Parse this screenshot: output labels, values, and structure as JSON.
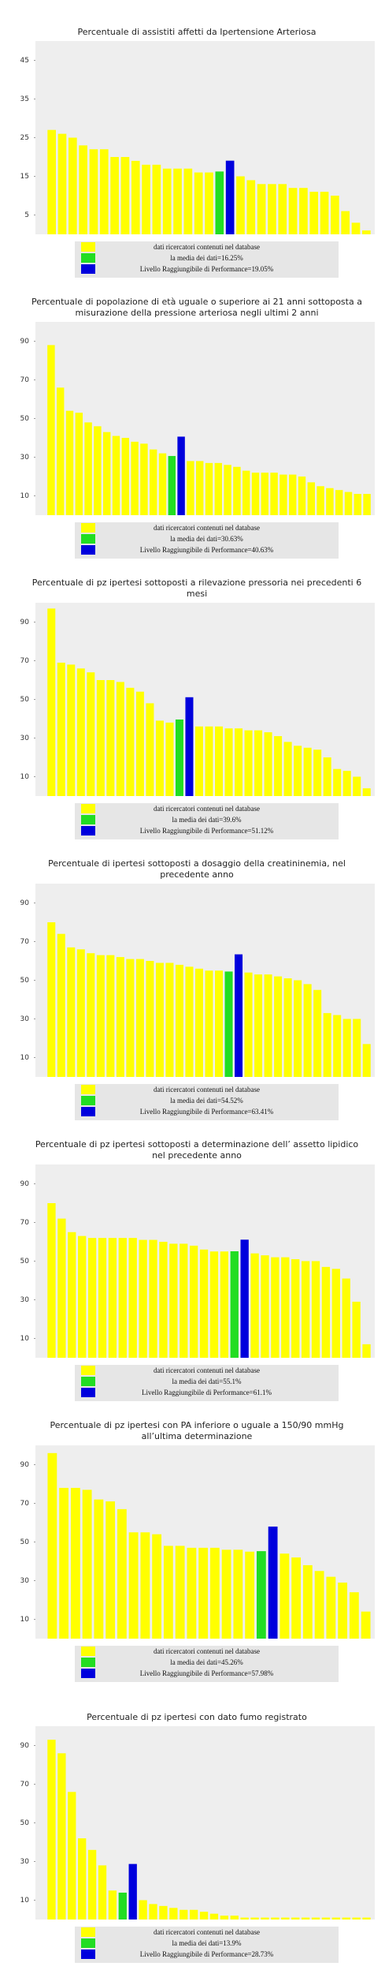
{
  "chart_data": [
    {
      "type": "bar",
      "title": "Percentuale di assistiti  affetti da Ipertensione Arteriosa",
      "values": [
        27,
        26,
        25,
        23,
        22,
        22,
        20,
        20,
        19,
        18,
        18,
        17,
        17,
        17,
        16,
        16,
        16.25,
        19.05,
        15,
        14,
        13,
        13,
        13,
        12,
        12,
        11,
        11,
        10,
        6,
        3,
        1
      ],
      "colors": [
        "#ffff00",
        "#ffff00",
        "#ffff00",
        "#ffff00",
        "#ffff00",
        "#ffff00",
        "#ffff00",
        "#ffff00",
        "#ffff00",
        "#ffff00",
        "#ffff00",
        "#ffff00",
        "#ffff00",
        "#ffff00",
        "#ffff00",
        "#ffff00",
        "#22dd22",
        "#0000dd",
        "#ffff00",
        "#ffff00",
        "#ffff00",
        "#ffff00",
        "#ffff00",
        "#ffff00",
        "#ffff00",
        "#ffff00",
        "#ffff00",
        "#ffff00",
        "#ffff00",
        "#ffff00",
        "#ffff00"
      ],
      "ylim": [
        0,
        50
      ],
      "yticks": [
        5,
        15,
        25,
        35,
        45
      ],
      "background": "#eeeeee",
      "legend": [
        {
          "name": "dati ricercatori contenuti nel database",
          "color": "#ffff00"
        },
        {
          "name": "la media dei dati=16.25%",
          "color": "#22dd22"
        },
        {
          "name": "Livello Raggiungibile di Performance=19.05%",
          "color": "#0000dd"
        }
      ]
    },
    {
      "type": "bar",
      "title": "Percentuale di popolazione di età uguale o superiore ai 21 anni sottoposta a misurazione della pressione arteriosa negli ultimi 2 anni",
      "values": [
        88,
        66,
        54,
        53,
        48,
        46,
        43,
        41,
        40,
        38,
        37,
        34,
        32,
        30.63,
        40.63,
        28,
        28,
        27,
        27,
        26,
        25,
        23,
        22,
        22,
        22,
        21,
        21,
        20,
        17,
        15,
        14,
        13,
        12,
        11,
        11
      ],
      "colors": [
        "#ffff00",
        "#ffff00",
        "#ffff00",
        "#ffff00",
        "#ffff00",
        "#ffff00",
        "#ffff00",
        "#ffff00",
        "#ffff00",
        "#ffff00",
        "#ffff00",
        "#ffff00",
        "#ffff00",
        "#22dd22",
        "#0000dd",
        "#ffff00",
        "#ffff00",
        "#ffff00",
        "#ffff00",
        "#ffff00",
        "#ffff00",
        "#ffff00",
        "#ffff00",
        "#ffff00",
        "#ffff00",
        "#ffff00",
        "#ffff00",
        "#ffff00",
        "#ffff00",
        "#ffff00",
        "#ffff00",
        "#ffff00",
        "#ffff00",
        "#ffff00",
        "#ffff00"
      ],
      "ylim": [
        0,
        100
      ],
      "yticks": [
        10,
        30,
        50,
        70,
        90
      ],
      "background": "#eeeeee",
      "legend": [
        {
          "name": "dati ricercatori contenuti nel database",
          "color": "#ffff00"
        },
        {
          "name": "la media dei dati=30.63%",
          "color": "#22dd22"
        },
        {
          "name": "Livello Raggiungibile di Performance=40.63%",
          "color": "#0000dd"
        }
      ]
    },
    {
      "type": "bar",
      "title": "Percentuale di pz ipertesi sottoposti a rilevazione pressoria nei precedenti 6 mesi",
      "values": [
        97,
        69,
        68,
        66,
        64,
        60,
        60,
        59,
        56,
        54,
        48,
        39,
        38,
        39.6,
        51.12,
        36,
        36,
        36,
        35,
        35,
        34,
        34,
        33,
        31,
        28,
        26,
        25,
        24,
        20,
        14,
        13,
        10,
        4
      ],
      "colors": [
        "#ffff00",
        "#ffff00",
        "#ffff00",
        "#ffff00",
        "#ffff00",
        "#ffff00",
        "#ffff00",
        "#ffff00",
        "#ffff00",
        "#ffff00",
        "#ffff00",
        "#ffff00",
        "#ffff00",
        "#22dd22",
        "#0000dd",
        "#ffff00",
        "#ffff00",
        "#ffff00",
        "#ffff00",
        "#ffff00",
        "#ffff00",
        "#ffff00",
        "#ffff00",
        "#ffff00",
        "#ffff00",
        "#ffff00",
        "#ffff00",
        "#ffff00",
        "#ffff00",
        "#ffff00",
        "#ffff00",
        "#ffff00",
        "#ffff00"
      ],
      "ylim": [
        0,
        100
      ],
      "yticks": [
        10,
        30,
        50,
        70,
        90
      ],
      "background": "#eeeeee",
      "legend": [
        {
          "name": "dati ricercatori contenuti nel database",
          "color": "#ffff00"
        },
        {
          "name": "la media dei dati=39.6%",
          "color": "#22dd22"
        },
        {
          "name": "Livello Raggiungibile di Performance=51.12%",
          "color": "#0000dd"
        }
      ]
    },
    {
      "type": "bar",
      "title": "Percentuale di ipertesi sottoposti a dosaggio della creatininemia, nel precedente anno",
      "values": [
        80,
        74,
        67,
        66,
        64,
        63,
        63,
        62,
        61,
        61,
        60,
        59,
        59,
        58,
        57,
        56,
        55,
        55,
        54.52,
        63.41,
        54,
        53,
        53,
        52,
        51,
        50,
        48,
        45,
        33,
        32,
        30,
        30,
        17
      ],
      "colors": [
        "#ffff00",
        "#ffff00",
        "#ffff00",
        "#ffff00",
        "#ffff00",
        "#ffff00",
        "#ffff00",
        "#ffff00",
        "#ffff00",
        "#ffff00",
        "#ffff00",
        "#ffff00",
        "#ffff00",
        "#ffff00",
        "#ffff00",
        "#ffff00",
        "#ffff00",
        "#ffff00",
        "#22dd22",
        "#0000dd",
        "#ffff00",
        "#ffff00",
        "#ffff00",
        "#ffff00",
        "#ffff00",
        "#ffff00",
        "#ffff00",
        "#ffff00",
        "#ffff00",
        "#ffff00",
        "#ffff00",
        "#ffff00",
        "#ffff00"
      ],
      "ylim": [
        0,
        100
      ],
      "yticks": [
        10,
        30,
        50,
        70,
        90
      ],
      "background": "#eeeeee",
      "legend": [
        {
          "name": "dati ricercatori contenuti nel database",
          "color": "#ffff00"
        },
        {
          "name": "la media dei dati=54.52%",
          "color": "#22dd22"
        },
        {
          "name": "Livello Raggiungibile di Performance=63.41%",
          "color": "#0000dd"
        }
      ]
    },
    {
      "type": "bar",
      "title": "Percentuale di pz ipertesi sottoposti a determinazione dell’ assetto lipidico nel precedente anno",
      "values": [
        80,
        72,
        65,
        63,
        62,
        62,
        62,
        62,
        62,
        61,
        61,
        60,
        59,
        59,
        58,
        56,
        55,
        55,
        55.1,
        61.1,
        54,
        53,
        52,
        52,
        51,
        50,
        50,
        47,
        46,
        41,
        29,
        7
      ],
      "colors": [
        "#ffff00",
        "#ffff00",
        "#ffff00",
        "#ffff00",
        "#ffff00",
        "#ffff00",
        "#ffff00",
        "#ffff00",
        "#ffff00",
        "#ffff00",
        "#ffff00",
        "#ffff00",
        "#ffff00",
        "#ffff00",
        "#ffff00",
        "#ffff00",
        "#ffff00",
        "#ffff00",
        "#22dd22",
        "#0000dd",
        "#ffff00",
        "#ffff00",
        "#ffff00",
        "#ffff00",
        "#ffff00",
        "#ffff00",
        "#ffff00",
        "#ffff00",
        "#ffff00",
        "#ffff00",
        "#ffff00",
        "#ffff00"
      ],
      "ylim": [
        0,
        100
      ],
      "yticks": [
        10,
        30,
        50,
        70,
        90
      ],
      "background": "#eeeeee",
      "legend": [
        {
          "name": "dati ricercatori contenuti nel database",
          "color": "#ffff00"
        },
        {
          "name": "la media dei dati=55.1%",
          "color": "#22dd22"
        },
        {
          "name": "Livello Raggiungibile di Performance=61.1%",
          "color": "#0000dd"
        }
      ]
    },
    {
      "type": "bar",
      "title": "Percentuale di pz ipertesi con PA inferiore o uguale a 150/90 mmHg all’ultima  determinazione",
      "values": [
        96,
        78,
        78,
        77,
        72,
        71,
        67,
        55,
        55,
        54,
        48,
        48,
        47,
        47,
        47,
        46,
        46,
        45,
        45.26,
        57.98,
        44,
        42,
        38,
        35,
        32,
        29,
        24,
        14
      ],
      "colors": [
        "#ffff00",
        "#ffff00",
        "#ffff00",
        "#ffff00",
        "#ffff00",
        "#ffff00",
        "#ffff00",
        "#ffff00",
        "#ffff00",
        "#ffff00",
        "#ffff00",
        "#ffff00",
        "#ffff00",
        "#ffff00",
        "#ffff00",
        "#ffff00",
        "#ffff00",
        "#ffff00",
        "#22dd22",
        "#0000dd",
        "#ffff00",
        "#ffff00",
        "#ffff00",
        "#ffff00",
        "#ffff00",
        "#ffff00",
        "#ffff00",
        "#ffff00"
      ],
      "ylim": [
        0,
        100
      ],
      "yticks": [
        10,
        30,
        50,
        70,
        90
      ],
      "background": "#eeeeee",
      "legend": [
        {
          "name": "dati ricercatori contenuti nel database",
          "color": "#ffff00"
        },
        {
          "name": "la media dei dati=45.26%",
          "color": "#22dd22"
        },
        {
          "name": "Livello Raggiungibile di Performance=57.98%",
          "color": "#0000dd"
        }
      ]
    },
    {
      "type": "bar",
      "title": "Percentuale di pz ipertesi con dato fumo registrato",
      "values": [
        93,
        86,
        66,
        42,
        36,
        28,
        15,
        13.9,
        28.73,
        10,
        8,
        7,
        6,
        5,
        5,
        4,
        3,
        2,
        2,
        1,
        1,
        1,
        1,
        1,
        1,
        1,
        1,
        1,
        1,
        1,
        1,
        1
      ],
      "colors": [
        "#ffff00",
        "#ffff00",
        "#ffff00",
        "#ffff00",
        "#ffff00",
        "#ffff00",
        "#ffff00",
        "#22dd22",
        "#0000dd",
        "#ffff00",
        "#ffff00",
        "#ffff00",
        "#ffff00",
        "#ffff00",
        "#ffff00",
        "#ffff00",
        "#ffff00",
        "#ffff00",
        "#ffff00",
        "#ffff00",
        "#ffff00",
        "#ffff00",
        "#ffff00",
        "#ffff00",
        "#ffff00",
        "#ffff00",
        "#ffff00",
        "#ffff00",
        "#ffff00",
        "#ffff00",
        "#ffff00",
        "#ffff00"
      ],
      "ylim": [
        0,
        100
      ],
      "yticks": [
        10,
        30,
        50,
        70,
        90
      ],
      "background": "#eeeeee",
      "legend": [
        {
          "name": "dati ricercatori contenuti nel database",
          "color": "#ffff00"
        },
        {
          "name": "la media dei dati=13.9%",
          "color": "#22dd22"
        },
        {
          "name": "Livello Raggiungibile di Performance=28.73%",
          "color": "#0000dd"
        }
      ]
    }
  ]
}
